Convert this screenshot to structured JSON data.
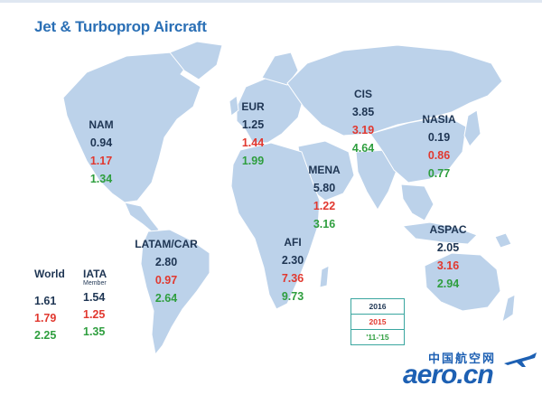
{
  "title": "Jet & Turboprop Aircraft",
  "colors": {
    "v2016": "#1e3553",
    "v2015": "#e1382f",
    "v1115": "#2e9e3e",
    "land": "#bcd2ea",
    "title": "#2a6fb5"
  },
  "regions": {
    "nam": {
      "name": "NAM",
      "v2016": "0.94",
      "v2015": "1.17",
      "v1115": "1.34"
    },
    "eur": {
      "name": "EUR",
      "v2016": "1.25",
      "v2015": "1.44",
      "v1115": "1.99"
    },
    "cis": {
      "name": "CIS",
      "v2016": "3.85",
      "v2015": "3.19",
      "v1115": "4.64"
    },
    "nasia": {
      "name": "NASIA",
      "v2016": "0.19",
      "v2015": "0.86",
      "v1115": "0.77"
    },
    "mena": {
      "name": "MENA",
      "v2016": "5.80",
      "v2015": "1.22",
      "v1115": "3.16"
    },
    "latam": {
      "name": "LATAM/CAR",
      "v2016": "2.80",
      "v2015": "0.97",
      "v1115": "2.64"
    },
    "afi": {
      "name": "AFI",
      "v2016": "2.30",
      "v2015": "7.36",
      "v1115": "9.73"
    },
    "aspac": {
      "name": "ASPAC",
      "v2016": "2.05",
      "v2015": "3.16",
      "v1115": "2.94"
    }
  },
  "world": {
    "label": "World",
    "v2016": "1.61",
    "v2015": "1.79",
    "v1115": "2.25"
  },
  "iata": {
    "label": "IATA",
    "sublabel": "Member",
    "v2016": "1.54",
    "v2015": "1.25",
    "v1115": "1.35"
  },
  "legend": {
    "y2016": "2016",
    "y2015": "2015",
    "y1115": "'11-'15"
  },
  "logo": {
    "cn": "中国航空网",
    "en": "aero.cn"
  }
}
